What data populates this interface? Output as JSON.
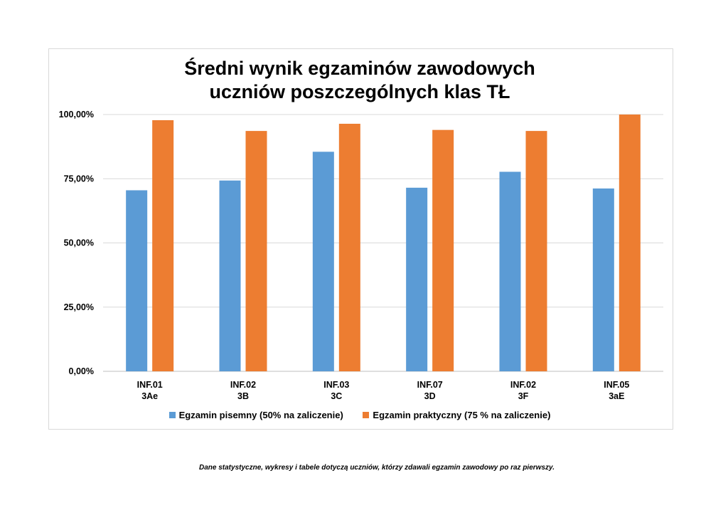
{
  "chart_data": {
    "type": "bar",
    "title_lines": [
      "Średni wynik egzaminów zawodowych",
      "uczniów poszczególnych klas TŁ"
    ],
    "categories": [
      [
        "INF.01",
        "3Ae"
      ],
      [
        "INF.02",
        "3B"
      ],
      [
        "INF.03",
        "3C"
      ],
      [
        "INF.07",
        "3D"
      ],
      [
        "INF.02",
        "3F"
      ],
      [
        "INF.05",
        "3aE"
      ]
    ],
    "series": [
      {
        "name": "Egzamin pisemny (50% na zaliczenie)",
        "color": "#5b9bd5",
        "values": [
          70.5,
          74.3,
          85.5,
          71.5,
          77.7,
          71.2
        ]
      },
      {
        "name": "Egzamin praktyczny (75 % na zaliczenie)",
        "color": "#ed7d31",
        "values": [
          97.8,
          93.6,
          96.4,
          94.0,
          93.6,
          100.0
        ]
      }
    ],
    "y_ticks": [
      "0,00%",
      "25,00%",
      "50,00%",
      "75,00%",
      "100,00%"
    ],
    "ylim": [
      0,
      100
    ],
    "grid": true,
    "legend_position": "bottom"
  },
  "footnote": "Dane statystyczne, wykresy i tabele dotyczą uczniów, którzy zdawali egzamin zawodowy po raz pierwszy."
}
